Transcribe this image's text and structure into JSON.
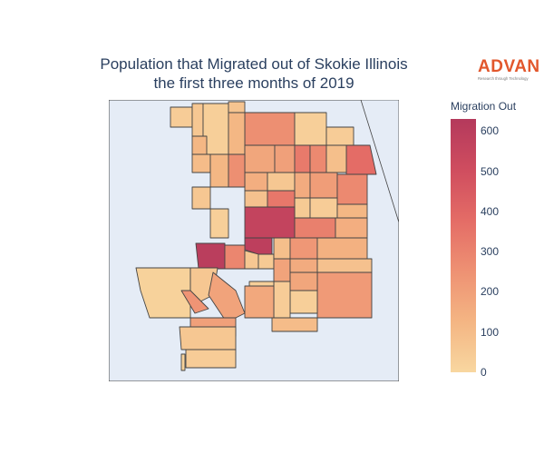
{
  "title": {
    "line1": "Population that Migrated out of Skokie Illinois",
    "line2": "the first three months of 2019"
  },
  "logo": {
    "word": "ADVAN",
    "tagline": "Research through Technology"
  },
  "colorbar": {
    "title": "Migration Out",
    "ticks": [
      "0",
      "100",
      "200",
      "300",
      "400",
      "500",
      "600"
    ],
    "colorscale": [
      "#f8d7a0",
      "#f4b583",
      "#ee9173",
      "#e46c66",
      "#cf4d5f",
      "#b4395c"
    ],
    "range": [
      0,
      630
    ]
  },
  "map": {
    "background": "#e5ecf6",
    "border_color": "#444444",
    "water_color": "#e5ecf6",
    "tracts_value_in_color_order": "values below are migration-out counts per tract",
    "tract_values": [
      40,
      60,
      30,
      70,
      260,
      120,
      180,
      30,
      40,
      380,
      200,
      330,
      280,
      90,
      150,
      60,
      160,
      210,
      280,
      120,
      100,
      120,
      260,
      80,
      340,
      50,
      40,
      120,
      600,
      590,
      60,
      560,
      30,
      310,
      150,
      290,
      60,
      50,
      90,
      230,
      140,
      190,
      160,
      80,
      220,
      180,
      30,
      40,
      30,
      20,
      60,
      240,
      190,
      170,
      200,
      60,
      40,
      100
    ]
  }
}
